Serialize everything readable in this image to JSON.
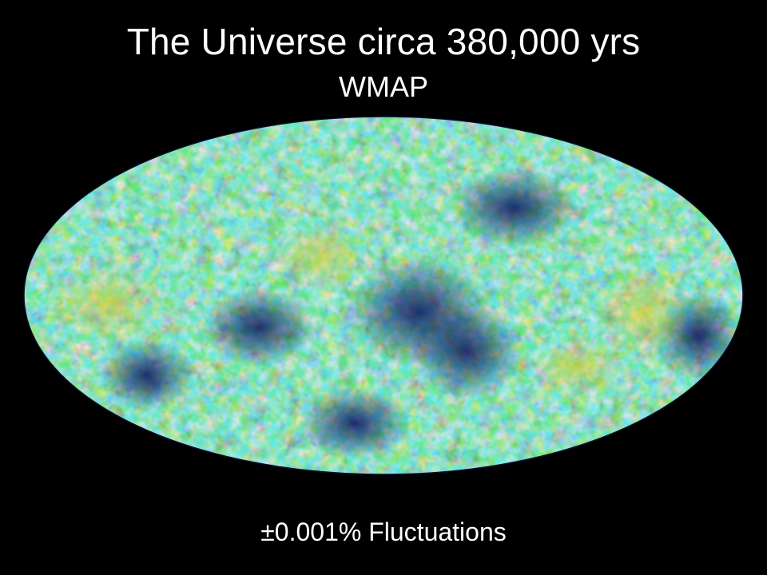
{
  "slide": {
    "title": "The Universe circa 380,000 yrs",
    "subtitle": "WMAP",
    "caption": "±0.001% Fluctuations"
  },
  "map": {
    "description_colors": {
      "cold": "#0a1a78",
      "cool": "#1f7fe0",
      "mid": "#2fc0b0",
      "warm": "#7ed23a",
      "hot": "#f2d21e",
      "hottest": "#e0281a"
    }
  },
  "colors": {
    "background": "#000000",
    "text": "#ffffff"
  }
}
